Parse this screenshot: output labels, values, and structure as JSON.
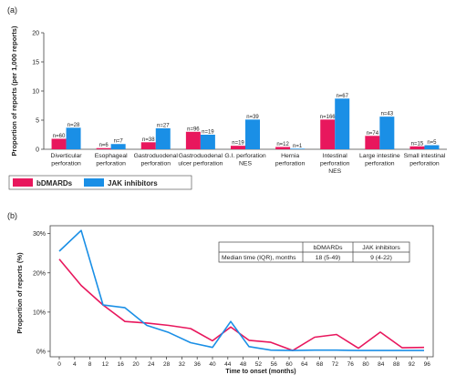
{
  "colors": {
    "bdmards": "#e8175d",
    "jak": "#1a8fe6",
    "axis": "#444444",
    "text": "#222222"
  },
  "chart_data": [
    {
      "panel_label": "(a)",
      "type": "bar",
      "ylabel": "Proportion of reports (per 1,000 reports)",
      "xlabel": "",
      "ylim": [
        0,
        20
      ],
      "yticks": [
        "0",
        "5",
        "10",
        "15",
        "20"
      ],
      "categories": [
        [
          "Diverticular",
          "perforation"
        ],
        [
          "Esophageal",
          "perforation"
        ],
        [
          "Gastroduodenal",
          "perforation"
        ],
        [
          "Gastroduodenal",
          "ulcer perforation"
        ],
        [
          "G.I. perforation",
          "NES"
        ],
        [
          "Hernia",
          "perforation"
        ],
        [
          "Intestinal",
          "perforation",
          "NES"
        ],
        [
          "Large intestine",
          "perforation"
        ],
        [
          "Small intestinal",
          "perforation"
        ]
      ],
      "series": [
        {
          "name": "bDMARDs",
          "values": [
            1.8,
            0.2,
            1.2,
            3.0,
            0.6,
            0.4,
            5.1,
            2.3,
            0.5
          ],
          "labels": [
            "n=60",
            "n=6",
            "n=38",
            "n=96",
            "n=19",
            "n=12",
            "n=166",
            "n=74",
            "n=15"
          ]
        },
        {
          "name": "JAK inhibitors",
          "values": [
            3.7,
            0.9,
            3.6,
            2.5,
            5.1,
            0.1,
            8.7,
            5.6,
            0.7
          ],
          "labels": [
            "n=28",
            "n=7",
            "n=27",
            "n=19",
            "n=39",
            "n=1",
            "n=67",
            "n=43",
            "n=5"
          ]
        }
      ],
      "legend": [
        "bDMARDs",
        "JAK inhibitors"
      ]
    },
    {
      "panel_label": "(b)",
      "type": "line",
      "ylabel": "Proportion of reports (%)",
      "xlabel": "Time to onset (months)",
      "xlim": [
        0,
        100
      ],
      "ylim": [
        0,
        32
      ],
      "yticks": [
        "0%",
        "10%",
        "20%",
        "30%"
      ],
      "xticks": [
        "0",
        "4",
        "8",
        "12",
        "16",
        "20",
        "24",
        "28",
        "32",
        "36",
        "40",
        "44",
        "48",
        "52",
        "56",
        "60",
        "64",
        "68",
        "72",
        "76",
        "80",
        "84",
        "88",
        "92",
        "96"
      ],
      "series": [
        {
          "name": "bDMARDs",
          "x": [
            0,
            6,
            12,
            18,
            24,
            30,
            36,
            42,
            47,
            52,
            58,
            64,
            70,
            76,
            82,
            88,
            94,
            100
          ],
          "y": [
            23.5,
            16.8,
            11.8,
            7.6,
            7.2,
            6.6,
            5.8,
            2.7,
            6.2,
            2.8,
            2.3,
            0.2,
            3.6,
            4.3,
            0.8,
            4.9,
            0.9,
            1.0
          ]
        },
        {
          "name": "JAK inhibitors",
          "x": [
            0,
            6,
            12,
            18,
            24,
            30,
            36,
            42,
            47,
            52,
            58,
            64,
            70,
            76,
            82,
            88,
            94,
            100
          ],
          "y": [
            25.5,
            30.8,
            11.8,
            11.1,
            6.6,
            4.8,
            2.2,
            1.0,
            7.6,
            1.2,
            0.3,
            0.2,
            0.3,
            0.3,
            0.2,
            0.2,
            0.2,
            0.2
          ]
        }
      ],
      "table": {
        "headers": [
          "",
          "bDMARDs",
          "JAK inhibitors"
        ],
        "row": [
          "Median time (IQR), months",
          "18 (5-49)",
          "9 (4-22)"
        ]
      }
    }
  ]
}
